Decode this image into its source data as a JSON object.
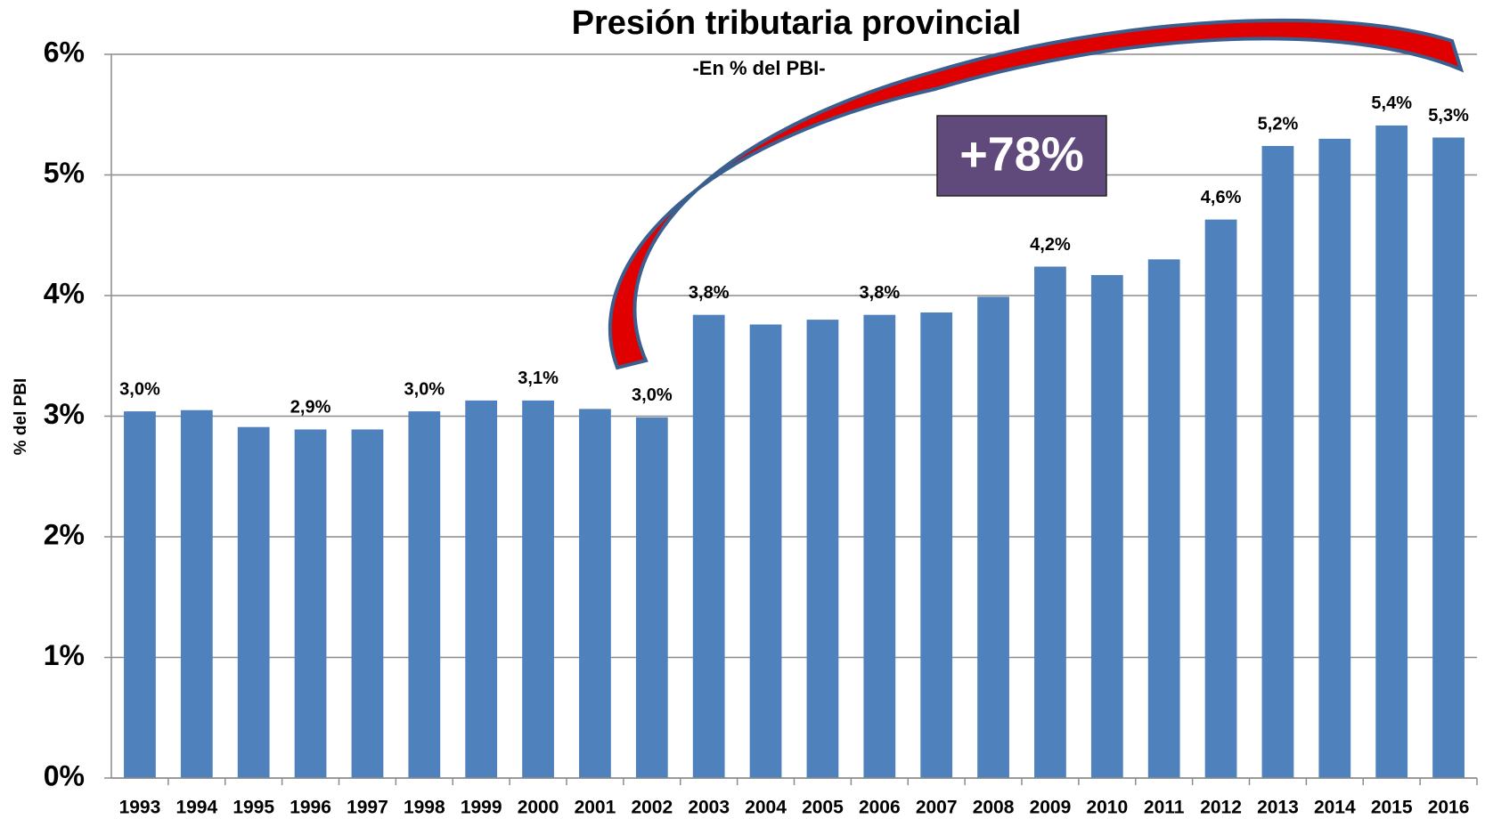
{
  "chart_data": {
    "type": "bar",
    "title": "Presión tributaria provincial",
    "subtitle": "-En % del PBI-",
    "y_label": "% del PBI",
    "annotation": "+78%",
    "categories": [
      "1993",
      "1994",
      "1995",
      "1996",
      "1997",
      "1998",
      "1999",
      "2000",
      "2001",
      "2002",
      "2003",
      "2004",
      "2005",
      "2006",
      "2007",
      "2008",
      "2009",
      "2010",
      "2011",
      "2012",
      "2013",
      "2014",
      "2015",
      "2016"
    ],
    "values": [
      3.04,
      3.05,
      2.91,
      2.89,
      2.89,
      3.04,
      3.13,
      3.13,
      3.06,
      2.99,
      3.84,
      3.76,
      3.8,
      3.84,
      3.86,
      3.99,
      4.24,
      4.17,
      4.3,
      4.63,
      5.24,
      5.3,
      5.41,
      5.31
    ],
    "value_labels": [
      "3,0%",
      null,
      null,
      "2,9%",
      null,
      "3,0%",
      null,
      "3,1%",
      null,
      "3,0%",
      "3,8%",
      null,
      null,
      "3,8%",
      null,
      null,
      "4,2%",
      null,
      null,
      "4,6%",
      "5,2%",
      null,
      "5,4%",
      "5,3%"
    ],
    "color": "#4f81bd",
    "ylim": [
      0,
      6
    ],
    "yticks": [
      {
        "value": 0,
        "label": "0%"
      },
      {
        "value": 1,
        "label": "1%"
      },
      {
        "value": 2,
        "label": "2%"
      },
      {
        "value": 3,
        "label": "3%"
      },
      {
        "value": 4,
        "label": "4%"
      },
      {
        "value": 5,
        "label": "5%"
      },
      {
        "value": 6,
        "label": "6%"
      }
    ],
    "grid": true
  }
}
